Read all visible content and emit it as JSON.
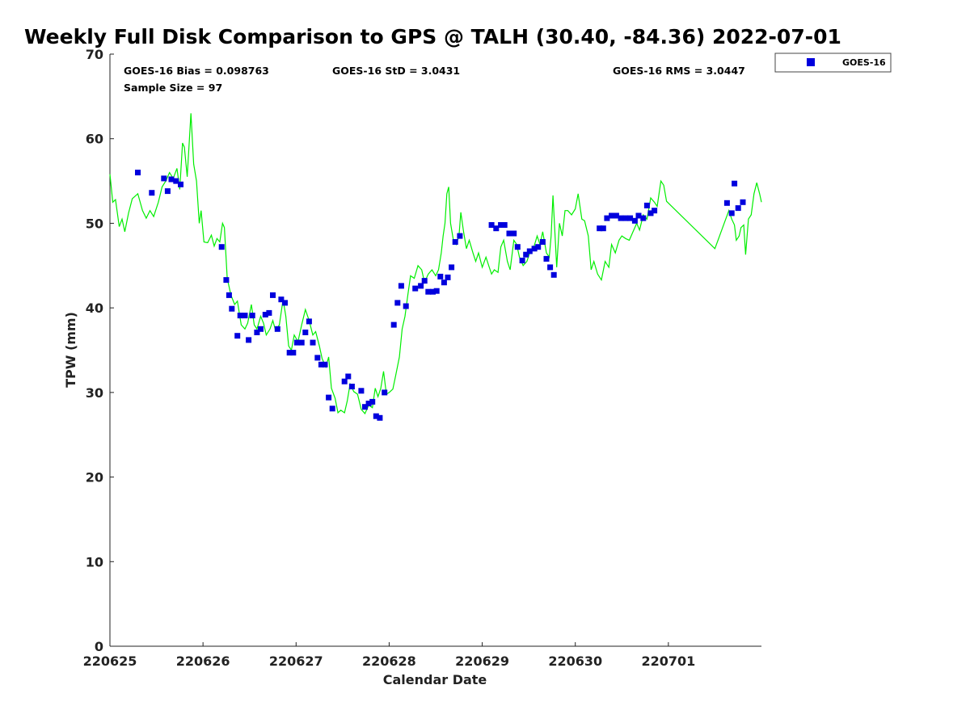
{
  "chart_data": {
    "type": "scatter",
    "title": "Weekly Full Disk Comparison to GPS @ TALH (30.40, -84.36) 2022-07-01",
    "xlabel": "Calendar Date",
    "ylabel": "TPW (mm)",
    "xlim": [
      0,
      7
    ],
    "ylim": [
      0,
      70
    ],
    "x_ticks": [
      0,
      1,
      2,
      3,
      4,
      5,
      6
    ],
    "x_tick_labels": [
      "220625",
      "220626",
      "220627",
      "220628",
      "220629",
      "220630",
      "220701"
    ],
    "y_ticks": [
      0,
      10,
      20,
      30,
      40,
      50,
      60,
      70
    ],
    "y_tick_labels": [
      "0",
      "10",
      "20",
      "30",
      "40",
      "50",
      "60",
      "70"
    ],
    "grid": false,
    "legend": {
      "position": "outside-top-right",
      "entries": [
        "GOES-16"
      ]
    },
    "stats": {
      "bias": "GOES-16 Bias = 0.098763",
      "std": "GOES-16 StD = 3.0431",
      "rms": "GOES-16 RMS = 3.0447",
      "sample": "Sample Size = 97"
    },
    "series": [
      {
        "name": "GOES-16",
        "kind": "scatter",
        "color": "#0000dd",
        "points": [
          [
            0.3,
            56.0
          ],
          [
            0.45,
            53.6
          ],
          [
            0.58,
            55.3
          ],
          [
            0.62,
            53.8
          ],
          [
            0.66,
            55.2
          ],
          [
            0.71,
            55.0
          ],
          [
            0.76,
            54.6
          ],
          [
            1.2,
            47.2
          ],
          [
            1.25,
            43.3
          ],
          [
            1.28,
            41.5
          ],
          [
            1.31,
            39.9
          ],
          [
            1.37,
            36.7
          ],
          [
            1.4,
            39.1
          ],
          [
            1.45,
            39.1
          ],
          [
            1.49,
            36.2
          ],
          [
            1.53,
            39.1
          ],
          [
            1.58,
            37.1
          ],
          [
            1.62,
            37.5
          ],
          [
            1.67,
            39.2
          ],
          [
            1.71,
            39.4
          ],
          [
            1.75,
            41.5
          ],
          [
            1.8,
            37.5
          ],
          [
            1.84,
            41.0
          ],
          [
            1.88,
            40.6
          ],
          [
            1.93,
            34.7
          ],
          [
            1.97,
            34.7
          ],
          [
            2.01,
            35.9
          ],
          [
            2.06,
            35.9
          ],
          [
            2.1,
            37.1
          ],
          [
            2.14,
            38.4
          ],
          [
            2.18,
            35.9
          ],
          [
            2.23,
            34.1
          ],
          [
            2.27,
            33.3
          ],
          [
            2.31,
            33.3
          ],
          [
            2.35,
            29.4
          ],
          [
            2.39,
            28.1
          ],
          [
            2.52,
            31.3
          ],
          [
            2.56,
            31.9
          ],
          [
            2.6,
            30.7
          ],
          [
            2.7,
            30.2
          ],
          [
            2.74,
            28.3
          ],
          [
            2.78,
            28.7
          ],
          [
            2.82,
            28.9
          ],
          [
            2.86,
            27.2
          ],
          [
            2.9,
            27.0
          ],
          [
            2.95,
            30.0
          ],
          [
            3.05,
            38.0
          ],
          [
            3.09,
            40.6
          ],
          [
            3.13,
            42.6
          ],
          [
            3.18,
            40.2
          ],
          [
            3.28,
            42.3
          ],
          [
            3.34,
            42.6
          ],
          [
            3.38,
            43.2
          ],
          [
            3.42,
            41.9
          ],
          [
            3.47,
            41.9
          ],
          [
            3.51,
            42.0
          ],
          [
            3.55,
            43.7
          ],
          [
            3.59,
            43.0
          ],
          [
            3.63,
            43.6
          ],
          [
            3.67,
            44.8
          ],
          [
            3.71,
            47.8
          ],
          [
            3.76,
            48.5
          ],
          [
            4.1,
            49.8
          ],
          [
            4.15,
            49.4
          ],
          [
            4.2,
            49.8
          ],
          [
            4.24,
            49.8
          ],
          [
            4.29,
            48.8
          ],
          [
            4.34,
            48.8
          ],
          [
            4.38,
            47.2
          ],
          [
            4.43,
            45.6
          ],
          [
            4.47,
            46.3
          ],
          [
            4.51,
            46.7
          ],
          [
            4.56,
            47.0
          ],
          [
            4.6,
            47.2
          ],
          [
            4.65,
            47.8
          ],
          [
            4.69,
            45.8
          ],
          [
            4.73,
            44.8
          ],
          [
            4.77,
            43.9
          ],
          [
            5.26,
            49.4
          ],
          [
            5.3,
            49.4
          ],
          [
            5.34,
            50.6
          ],
          [
            5.39,
            50.9
          ],
          [
            5.44,
            50.9
          ],
          [
            5.49,
            50.6
          ],
          [
            5.54,
            50.6
          ],
          [
            5.59,
            50.6
          ],
          [
            5.64,
            50.3
          ],
          [
            5.68,
            50.9
          ],
          [
            5.73,
            50.6
          ],
          [
            5.77,
            52.1
          ],
          [
            5.81,
            51.2
          ],
          [
            5.85,
            51.5
          ],
          [
            6.63,
            52.4
          ],
          [
            6.68,
            51.2
          ],
          [
            6.71,
            54.7
          ],
          [
            6.75,
            51.8
          ],
          [
            6.8,
            52.5
          ]
        ]
      },
      {
        "name": "",
        "kind": "line",
        "color": "#00ee00",
        "points": [
          [
            0.0,
            55.8
          ],
          [
            0.03,
            52.5
          ],
          [
            0.06,
            52.8
          ],
          [
            0.1,
            49.6
          ],
          [
            0.13,
            50.5
          ],
          [
            0.16,
            49.0
          ],
          [
            0.2,
            51.2
          ],
          [
            0.24,
            52.9
          ],
          [
            0.3,
            53.5
          ],
          [
            0.35,
            51.5
          ],
          [
            0.39,
            50.6
          ],
          [
            0.43,
            51.5
          ],
          [
            0.47,
            50.8
          ],
          [
            0.52,
            52.5
          ],
          [
            0.56,
            54.3
          ],
          [
            0.6,
            55.0
          ],
          [
            0.64,
            56.0
          ],
          [
            0.68,
            55.3
          ],
          [
            0.72,
            56.5
          ],
          [
            0.75,
            54.0
          ],
          [
            0.78,
            59.5
          ],
          [
            0.8,
            59.0
          ],
          [
            0.83,
            55.5
          ],
          [
            0.87,
            63.0
          ],
          [
            0.9,
            57.0
          ],
          [
            0.93,
            55.0
          ],
          [
            0.96,
            50.0
          ],
          [
            0.98,
            51.5
          ],
          [
            1.01,
            47.8
          ],
          [
            1.05,
            47.7
          ],
          [
            1.09,
            48.6
          ],
          [
            1.12,
            47.3
          ],
          [
            1.15,
            48.2
          ],
          [
            1.18,
            47.8
          ],
          [
            1.21,
            50.0
          ],
          [
            1.23,
            49.5
          ],
          [
            1.26,
            43.5
          ],
          [
            1.3,
            41.5
          ],
          [
            1.34,
            40.4
          ],
          [
            1.37,
            40.8
          ],
          [
            1.41,
            38.0
          ],
          [
            1.45,
            37.5
          ],
          [
            1.48,
            38.2
          ],
          [
            1.52,
            40.4
          ],
          [
            1.55,
            38.0
          ],
          [
            1.58,
            37.5
          ],
          [
            1.62,
            39.0
          ],
          [
            1.65,
            38.2
          ],
          [
            1.68,
            36.8
          ],
          [
            1.72,
            37.5
          ],
          [
            1.75,
            38.5
          ],
          [
            1.78,
            37.3
          ],
          [
            1.82,
            38.0
          ],
          [
            1.86,
            41.0
          ],
          [
            1.89,
            39.0
          ],
          [
            1.92,
            35.5
          ],
          [
            1.95,
            35.0
          ],
          [
            1.98,
            36.8
          ],
          [
            2.02,
            36.0
          ],
          [
            2.06,
            38.0
          ],
          [
            2.1,
            39.8
          ],
          [
            2.14,
            38.5
          ],
          [
            2.18,
            36.8
          ],
          [
            2.21,
            37.2
          ],
          [
            2.25,
            35.5
          ],
          [
            2.28,
            34.0
          ],
          [
            2.32,
            33.0
          ],
          [
            2.35,
            34.2
          ],
          [
            2.38,
            30.5
          ],
          [
            2.42,
            29.3
          ],
          [
            2.45,
            27.6
          ],
          [
            2.48,
            27.9
          ],
          [
            2.52,
            27.6
          ],
          [
            2.55,
            29.0
          ],
          [
            2.58,
            31.0
          ],
          [
            2.62,
            30.1
          ],
          [
            2.66,
            29.8
          ],
          [
            2.7,
            28.0
          ],
          [
            2.74,
            27.5
          ],
          [
            2.78,
            28.5
          ],
          [
            2.82,
            28.2
          ],
          [
            2.85,
            30.5
          ],
          [
            2.88,
            29.5
          ],
          [
            2.91,
            30.5
          ],
          [
            2.94,
            32.5
          ],
          [
            2.97,
            29.8
          ],
          [
            3.0,
            30.0
          ],
          [
            3.04,
            30.4
          ],
          [
            3.07,
            32.0
          ],
          [
            3.11,
            34.2
          ],
          [
            3.14,
            37.5
          ],
          [
            3.17,
            39.0
          ],
          [
            3.2,
            41.5
          ],
          [
            3.23,
            43.8
          ],
          [
            3.27,
            43.5
          ],
          [
            3.31,
            45.0
          ],
          [
            3.35,
            44.5
          ],
          [
            3.38,
            43.0
          ],
          [
            3.42,
            44.0
          ],
          [
            3.46,
            44.5
          ],
          [
            3.5,
            43.8
          ],
          [
            3.53,
            44.5
          ],
          [
            3.56,
            46.5
          ],
          [
            3.58,
            48.5
          ],
          [
            3.6,
            50.0
          ],
          [
            3.62,
            53.5
          ],
          [
            3.64,
            54.3
          ],
          [
            3.66,
            50.0
          ],
          [
            3.69,
            48.0
          ],
          [
            3.72,
            47.5
          ],
          [
            3.75,
            48.5
          ],
          [
            3.77,
            51.3
          ],
          [
            3.8,
            49.0
          ],
          [
            3.83,
            47.0
          ],
          [
            3.86,
            48.0
          ],
          [
            3.9,
            46.5
          ],
          [
            3.93,
            45.5
          ],
          [
            3.96,
            46.5
          ],
          [
            4.0,
            44.8
          ],
          [
            4.04,
            46.0
          ],
          [
            4.07,
            45.0
          ],
          [
            4.1,
            44.0
          ],
          [
            4.13,
            44.5
          ],
          [
            4.17,
            44.2
          ],
          [
            4.2,
            47.2
          ],
          [
            4.23,
            48.0
          ],
          [
            4.27,
            45.5
          ],
          [
            4.3,
            44.5
          ],
          [
            4.34,
            48.0
          ],
          [
            4.37,
            47.5
          ],
          [
            4.4,
            46.0
          ],
          [
            4.44,
            45.0
          ],
          [
            4.48,
            45.5
          ],
          [
            4.51,
            46.5
          ],
          [
            4.55,
            47.0
          ],
          [
            4.59,
            48.5
          ],
          [
            4.62,
            47.5
          ],
          [
            4.65,
            49.0
          ],
          [
            4.69,
            46.5
          ],
          [
            4.72,
            46.0
          ],
          [
            4.74,
            48.5
          ],
          [
            4.76,
            53.3
          ],
          [
            4.8,
            44.8
          ],
          [
            4.83,
            50.0
          ],
          [
            4.86,
            48.5
          ],
          [
            4.89,
            51.5
          ],
          [
            4.92,
            51.5
          ],
          [
            4.96,
            51.0
          ],
          [
            5.0,
            51.7
          ],
          [
            5.03,
            53.5
          ],
          [
            5.07,
            50.5
          ],
          [
            5.1,
            50.3
          ],
          [
            5.14,
            48.5
          ],
          [
            5.17,
            44.5
          ],
          [
            5.2,
            45.5
          ],
          [
            5.24,
            44.0
          ],
          [
            5.28,
            43.3
          ],
          [
            5.32,
            45.5
          ],
          [
            5.36,
            44.8
          ],
          [
            5.39,
            47.5
          ],
          [
            5.43,
            46.5
          ],
          [
            5.47,
            48.0
          ],
          [
            5.5,
            48.5
          ],
          [
            5.54,
            48.2
          ],
          [
            5.58,
            48.0
          ],
          [
            5.62,
            49.0
          ],
          [
            5.66,
            50.0
          ],
          [
            5.69,
            49.2
          ],
          [
            5.73,
            51.0
          ],
          [
            5.77,
            50.5
          ],
          [
            5.81,
            53.0
          ],
          [
            5.85,
            52.5
          ],
          [
            5.88,
            52.0
          ],
          [
            5.92,
            55.0
          ],
          [
            5.95,
            54.5
          ],
          [
            5.98,
            52.6
          ],
          [
            6.5,
            47.0
          ],
          [
            6.55,
            48.5
          ],
          [
            6.6,
            50.0
          ],
          [
            6.65,
            51.5
          ],
          [
            6.68,
            50.5
          ],
          [
            6.71,
            49.8
          ],
          [
            6.73,
            48.0
          ],
          [
            6.76,
            48.5
          ],
          [
            6.78,
            49.5
          ],
          [
            6.81,
            49.8
          ],
          [
            6.83,
            46.3
          ],
          [
            6.86,
            50.5
          ],
          [
            6.89,
            51.0
          ],
          [
            6.92,
            53.5
          ],
          [
            6.95,
            54.8
          ],
          [
            6.98,
            53.5
          ],
          [
            7.0,
            52.5
          ]
        ]
      }
    ]
  }
}
